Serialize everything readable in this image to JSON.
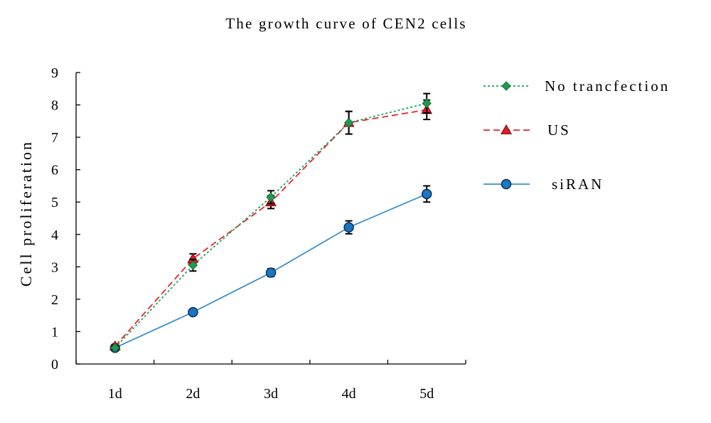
{
  "chart_data": {
    "type": "line",
    "title": "The growth curve of CEN2 cells",
    "xlabel": "",
    "ylabel": "Cell proliferation",
    "categories": [
      "1d",
      "2d",
      "3d",
      "4d",
      "5d"
    ],
    "ylim": [
      0,
      9
    ],
    "yticks": [
      "0",
      "1",
      "2",
      "3",
      "4",
      "5",
      "6",
      "7",
      "8",
      "9"
    ],
    "grid": false,
    "legend_position": "right",
    "series": [
      {
        "name": "No trancfection",
        "values": [
          0.5,
          3.05,
          5.15,
          7.45,
          8.05
        ],
        "errors": [
          0.05,
          0.18,
          0.2,
          0.35,
          0.3
        ],
        "color": "#1fa35a",
        "marker_fill": "#1f9a4e",
        "marker": "diamond",
        "line_style": "dotted"
      },
      {
        "name": "US",
        "values": [
          0.55,
          3.25,
          5.0,
          7.45,
          7.85
        ],
        "errors": [
          0.05,
          0.15,
          0.2,
          0.35,
          0.3
        ],
        "color": "#e8262e",
        "marker_fill": "#e01b22",
        "marker": "triangle",
        "line_style": "dashed"
      },
      {
        "name": "siRAN",
        "values": [
          0.5,
          1.6,
          2.82,
          4.22,
          5.25
        ],
        "errors": [
          0.05,
          0.08,
          0.12,
          0.2,
          0.25
        ],
        "color": "#3a8fd0",
        "marker_fill": "#1a75c4",
        "marker": "circle",
        "line_style": "solid"
      }
    ]
  }
}
